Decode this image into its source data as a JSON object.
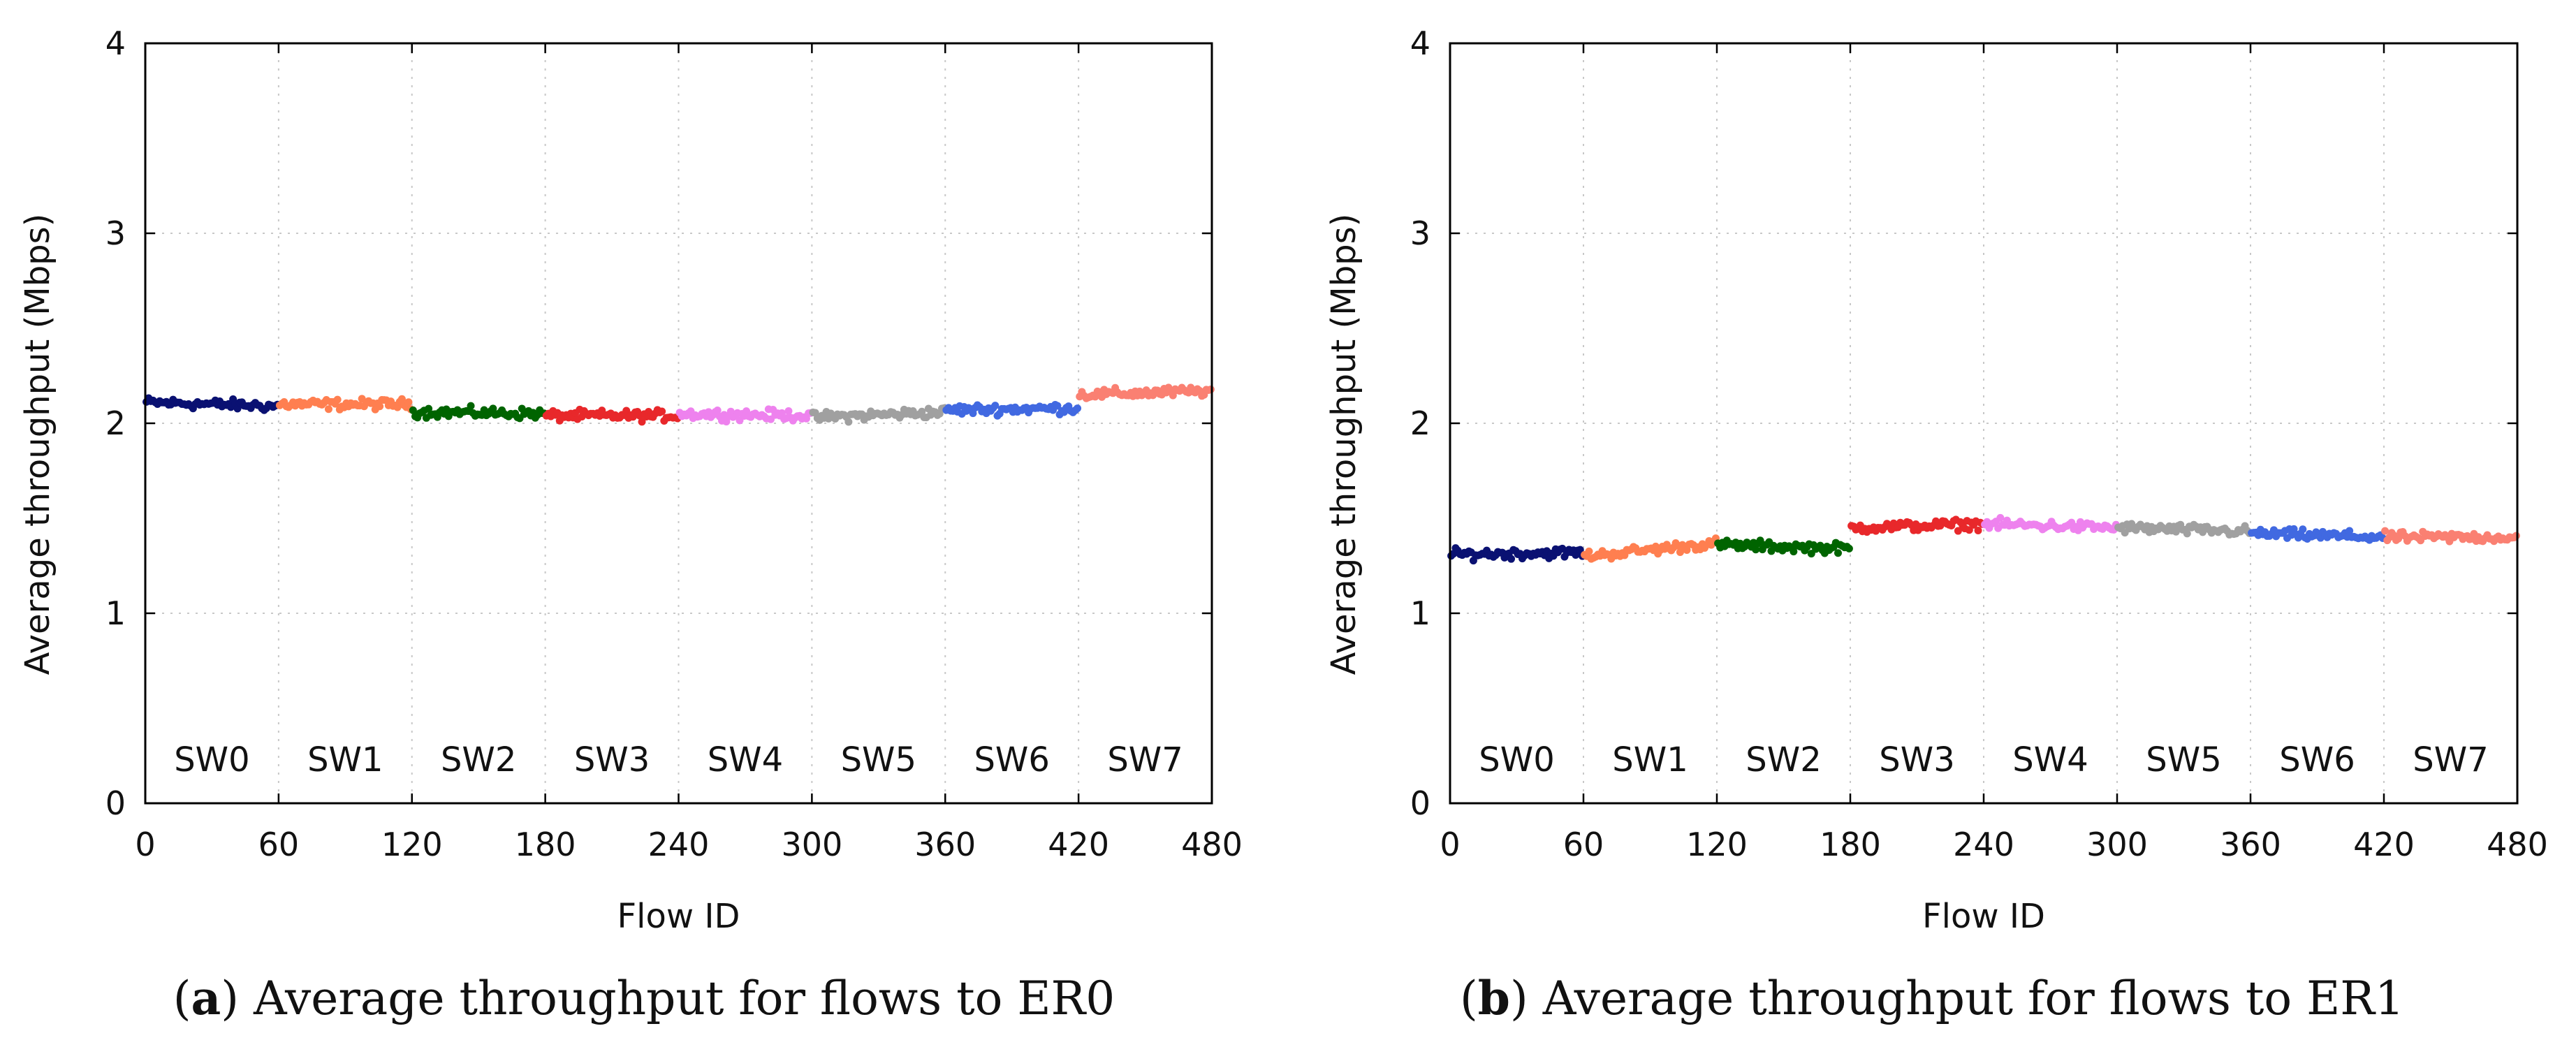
{
  "chart_data": [
    {
      "id": "a",
      "type": "scatter",
      "caption_label": "a",
      "caption_text": "Average throughput for flows to ER0",
      "xlabel": "Flow ID",
      "ylabel": "Average throughput (Mbps)",
      "xlim": [
        0,
        480
      ],
      "ylim": [
        0,
        4
      ],
      "xticks": [
        0,
        60,
        120,
        180,
        240,
        300,
        360,
        420,
        480
      ],
      "yticks": [
        0,
        1,
        2,
        3,
        4
      ],
      "grid": true,
      "series": [
        {
          "name": "SW0",
          "x_range": [
            0,
            60
          ],
          "mean": 2.1,
          "start": 2.11,
          "end": 2.09,
          "spread": 0.05,
          "color": "#0a1172"
        },
        {
          "name": "SW1",
          "x_range": [
            60,
            120
          ],
          "mean": 2.11,
          "start": 2.1,
          "end": 2.1,
          "spread": 0.05,
          "color": "#ff7f50"
        },
        {
          "name": "SW2",
          "x_range": [
            120,
            180
          ],
          "mean": 2.04,
          "start": 2.06,
          "end": 2.05,
          "spread": 0.05,
          "color": "#006400"
        },
        {
          "name": "SW3",
          "x_range": [
            180,
            240
          ],
          "mean": 2.03,
          "start": 2.04,
          "end": 2.04,
          "spread": 0.05,
          "color": "#e8282b"
        },
        {
          "name": "SW4",
          "x_range": [
            240,
            300
          ],
          "mean": 2.04,
          "start": 2.05,
          "end": 2.04,
          "spread": 0.05,
          "color": "#ee82ee"
        },
        {
          "name": "SW5",
          "x_range": [
            300,
            360
          ],
          "mean": 2.05,
          "start": 2.03,
          "end": 2.06,
          "spread": 0.05,
          "color": "#a0a0a0"
        },
        {
          "name": "SW6",
          "x_range": [
            360,
            420
          ],
          "mean": 2.07,
          "start": 2.07,
          "end": 2.08,
          "spread": 0.05,
          "color": "#4169e1"
        },
        {
          "name": "SW7",
          "x_range": [
            420,
            480
          ],
          "mean": 2.15,
          "start": 2.15,
          "end": 2.17,
          "spread": 0.05,
          "color": "#fa8072"
        }
      ]
    },
    {
      "id": "b",
      "type": "scatter",
      "caption_label": "b",
      "caption_text": "Average throughput for flows to ER1",
      "xlabel": "Flow ID",
      "ylabel": "Average throughput (Mbps)",
      "xlim": [
        0,
        480
      ],
      "ylim": [
        0,
        4
      ],
      "xticks": [
        0,
        60,
        120,
        180,
        240,
        300,
        360,
        420,
        480
      ],
      "yticks": [
        0,
        1,
        2,
        3,
        4
      ],
      "grid": true,
      "series": [
        {
          "name": "SW0",
          "x_range": [
            0,
            60
          ],
          "mean": 1.32,
          "start": 1.31,
          "end": 1.32,
          "spread": 0.05,
          "color": "#0a1172"
        },
        {
          "name": "SW1",
          "x_range": [
            60,
            120
          ],
          "mean": 1.34,
          "start": 1.3,
          "end": 1.37,
          "spread": 0.05,
          "color": "#ff7f50"
        },
        {
          "name": "SW2",
          "x_range": [
            120,
            180
          ],
          "mean": 1.35,
          "start": 1.36,
          "end": 1.34,
          "spread": 0.05,
          "color": "#006400"
        },
        {
          "name": "SW3",
          "x_range": [
            180,
            240
          ],
          "mean": 1.46,
          "start": 1.45,
          "end": 1.47,
          "spread": 0.05,
          "color": "#e8282b"
        },
        {
          "name": "SW4",
          "x_range": [
            240,
            300
          ],
          "mean": 1.46,
          "start": 1.47,
          "end": 1.45,
          "spread": 0.05,
          "color": "#ee82ee"
        },
        {
          "name": "SW5",
          "x_range": [
            300,
            360
          ],
          "mean": 1.44,
          "start": 1.45,
          "end": 1.43,
          "spread": 0.05,
          "color": "#a0a0a0"
        },
        {
          "name": "SW6",
          "x_range": [
            360,
            420
          ],
          "mean": 1.41,
          "start": 1.42,
          "end": 1.4,
          "spread": 0.05,
          "color": "#4169e1"
        },
        {
          "name": "SW7",
          "x_range": [
            420,
            480
          ],
          "mean": 1.4,
          "start": 1.4,
          "end": 1.4,
          "spread": 0.05,
          "color": "#fa8072"
        }
      ]
    }
  ]
}
